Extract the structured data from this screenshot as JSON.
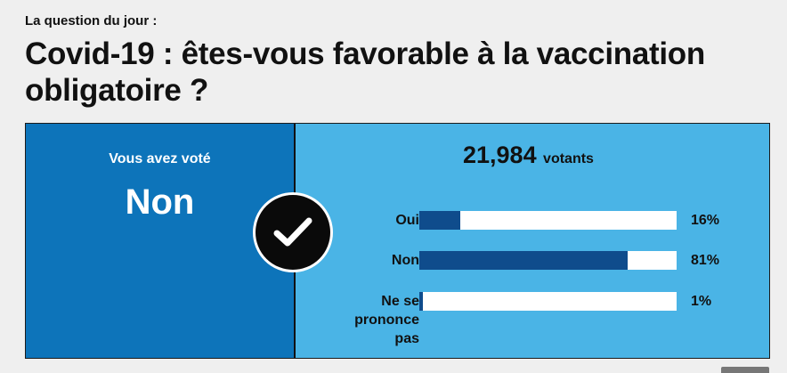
{
  "kicker": "La question du jour :",
  "question": "Covid-19 : êtes-vous favorable à la vaccination obligatoire ?",
  "voted": {
    "label": "Vous avez voté",
    "choice": "Non",
    "icon": "check-icon"
  },
  "results": {
    "total_votes": "21,984",
    "total_unit": "votants",
    "options": [
      {
        "label": "Oui",
        "percent_label": "16%",
        "value": 16
      },
      {
        "label": "Non",
        "percent_label": "81%",
        "value": 81
      },
      {
        "label": "Ne se prononce pas",
        "percent_label": "1%",
        "value": 1
      }
    ]
  },
  "colors": {
    "voted_panel": "#0d74ba",
    "results_panel": "#4ab4e6",
    "bar_fill": "#0f4c8c",
    "bar_track": "#ffffff"
  }
}
